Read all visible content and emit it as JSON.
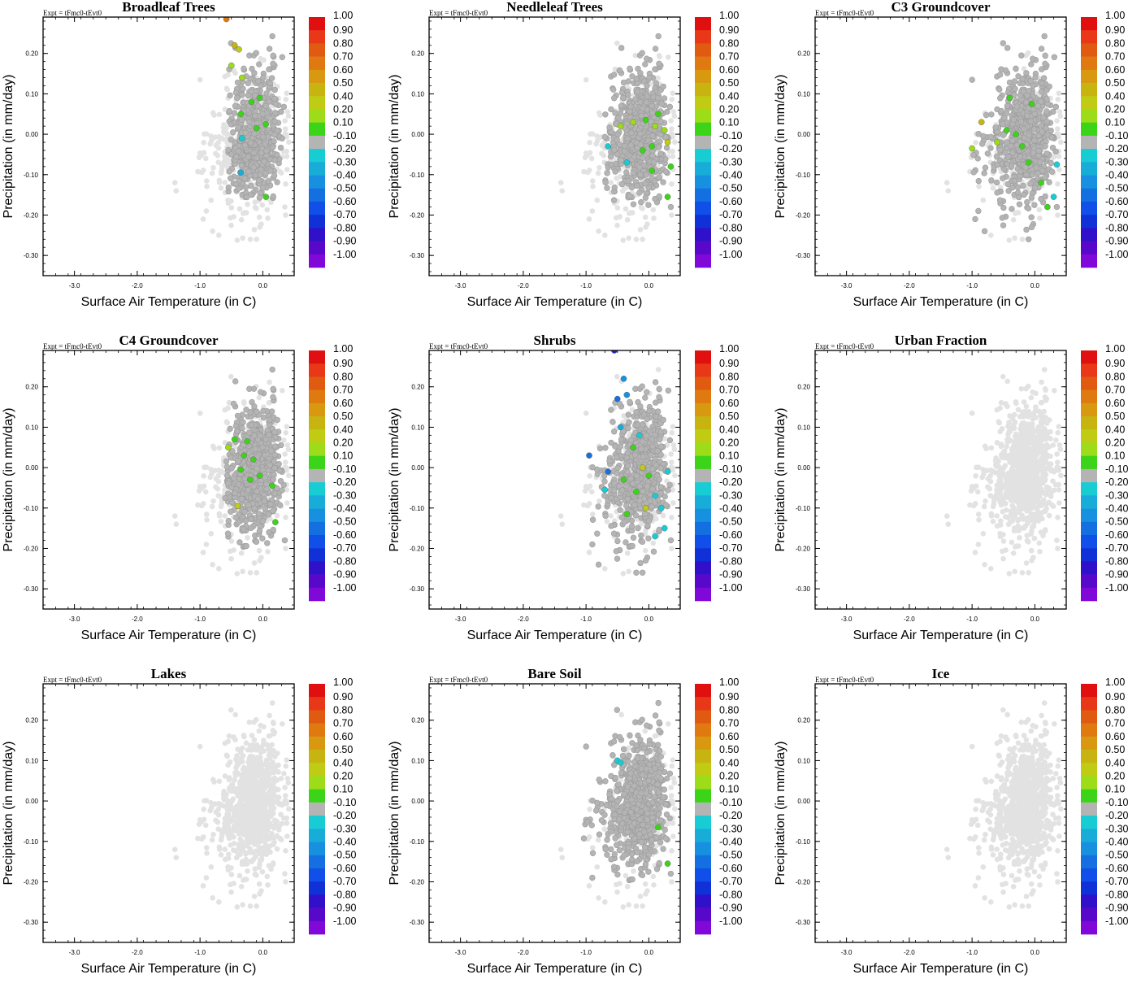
{
  "figure": {
    "expt_label": "Expt = tFmc0-tEvt0",
    "xlabel": "Surface Air Temperature (in C)",
    "ylabel": "Precipitation (in mm/day)"
  },
  "chart_data": {
    "type": "scatter",
    "xlim": [
      -3.5,
      0.5
    ],
    "ylim": [
      -0.35,
      0.29
    ],
    "x_ticks": [
      -3.0,
      -2.0,
      -1.0,
      0.0
    ],
    "x_tick_labels": [
      "-3.0",
      "-2.0",
      "-1.0",
      "0.0"
    ],
    "y_ticks": [
      0.2,
      0.1,
      0.0,
      -0.1,
      -0.2,
      -0.3
    ],
    "y_tick_labels": [
      "0.20",
      "0.10",
      "0.00",
      "-0.10",
      "-0.20",
      "-0.30"
    ],
    "colorbar": {
      "labels": [
        "1.00",
        "0.90",
        "0.80",
        "0.70",
        "0.60",
        "0.50",
        "0.40",
        "0.20",
        "0.10",
        "-0.10",
        "-0.20",
        "-0.30",
        "-0.40",
        "-0.50",
        "-0.60",
        "-0.70",
        "-0.80",
        "-0.90",
        "-1.00"
      ],
      "colors": [
        "#e01010",
        "#e83818",
        "#e05a12",
        "#e07a10",
        "#d89810",
        "#c8b410",
        "#c0cc14",
        "#9cdc18",
        "#3cd418",
        "#b4b4b4",
        "#18ccd4",
        "#18acd8",
        "#1890e0",
        "#1470e0",
        "#1050e8",
        "#1030d8",
        "#3010c8",
        "#5808c8",
        "#8008d8"
      ]
    },
    "panels": [
      {
        "title": "Broadleaf Trees",
        "gray_bbox": [
          -0.55,
          -0.16,
          0.35,
          0.26
        ],
        "colored_points": [
          {
            "x": -0.58,
            "y": 0.285,
            "c": 0.7
          },
          {
            "x": -0.45,
            "y": 0.22,
            "c": 0.5
          },
          {
            "x": -0.38,
            "y": 0.21,
            "c": 0.4
          },
          {
            "x": -0.5,
            "y": 0.17,
            "c": 0.2
          },
          {
            "x": -0.33,
            "y": 0.14,
            "c": 0.2
          },
          {
            "x": -0.05,
            "y": 0.09,
            "c": 0.1
          },
          {
            "x": -0.18,
            "y": 0.08,
            "c": 0.1
          },
          {
            "x": -0.35,
            "y": 0.05,
            "c": 0.1
          },
          {
            "x": -0.1,
            "y": 0.015,
            "c": 0.1
          },
          {
            "x": 0.05,
            "y": 0.025,
            "c": 0.1
          },
          {
            "x": -0.33,
            "y": -0.01,
            "c": -0.2
          },
          {
            "x": -0.35,
            "y": -0.095,
            "c": -0.3
          },
          {
            "x": 0.05,
            "y": -0.155,
            "c": 0.1
          }
        ]
      },
      {
        "title": "Needleleaf Trees",
        "gray_bbox": [
          -0.7,
          -0.18,
          0.35,
          0.26
        ],
        "colored_points": [
          {
            "x": -0.65,
            "y": -0.03,
            "c": -0.2
          },
          {
            "x": -0.45,
            "y": 0.02,
            "c": 0.2
          },
          {
            "x": -0.25,
            "y": 0.03,
            "c": 0.2
          },
          {
            "x": -0.05,
            "y": 0.035,
            "c": 0.1
          },
          {
            "x": 0.1,
            "y": 0.02,
            "c": 0.2
          },
          {
            "x": 0.25,
            "y": 0.01,
            "c": 0.2
          },
          {
            "x": 0.3,
            "y": -0.02,
            "c": 0.4
          },
          {
            "x": 0.05,
            "y": -0.03,
            "c": 0.1
          },
          {
            "x": -0.1,
            "y": -0.04,
            "c": 0.1
          },
          {
            "x": -0.35,
            "y": -0.07,
            "c": -0.2
          },
          {
            "x": 0.05,
            "y": -0.09,
            "c": 0.1
          },
          {
            "x": 0.35,
            "y": -0.08,
            "c": 0.1
          },
          {
            "x": 0.3,
            "y": -0.155,
            "c": 0.1
          },
          {
            "x": 0.15,
            "y": 0.05,
            "c": 0.1
          }
        ]
      },
      {
        "title": "C3 Groundcover",
        "gray_bbox": [
          -1.0,
          -0.26,
          0.35,
          0.25
        ],
        "colored_points": [
          {
            "x": -0.85,
            "y": 0.03,
            "c": 0.5
          },
          {
            "x": -1.0,
            "y": -0.035,
            "c": 0.2
          },
          {
            "x": -0.6,
            "y": -0.02,
            "c": 0.2
          },
          {
            "x": -0.45,
            "y": 0.01,
            "c": 0.1
          },
          {
            "x": -0.3,
            "y": 0.0,
            "c": 0.1
          },
          {
            "x": -0.4,
            "y": 0.09,
            "c": 0.1
          },
          {
            "x": -0.05,
            "y": 0.075,
            "c": 0.1
          },
          {
            "x": -0.2,
            "y": -0.03,
            "c": 0.1
          },
          {
            "x": -0.1,
            "y": -0.07,
            "c": 0.1
          },
          {
            "x": 0.1,
            "y": -0.12,
            "c": 0.1
          },
          {
            "x": 0.2,
            "y": -0.18,
            "c": 0.1
          },
          {
            "x": 0.3,
            "y": -0.155,
            "c": -0.2
          },
          {
            "x": 0.35,
            "y": -0.075,
            "c": -0.2
          }
        ]
      },
      {
        "title": "C4 Groundcover",
        "gray_bbox": [
          -0.6,
          -0.2,
          0.35,
          0.27
        ],
        "colored_points": [
          {
            "x": -0.45,
            "y": 0.07,
            "c": 0.1
          },
          {
            "x": -0.25,
            "y": 0.065,
            "c": 0.1
          },
          {
            "x": -0.55,
            "y": 0.05,
            "c": 0.2
          },
          {
            "x": -0.3,
            "y": 0.03,
            "c": 0.1
          },
          {
            "x": -0.15,
            "y": 0.02,
            "c": 0.1
          },
          {
            "x": -0.35,
            "y": -0.005,
            "c": 0.1
          },
          {
            "x": -0.05,
            "y": -0.02,
            "c": 0.1
          },
          {
            "x": -0.2,
            "y": -0.03,
            "c": 0.1
          },
          {
            "x": 0.15,
            "y": -0.045,
            "c": 0.1
          },
          {
            "x": -0.4,
            "y": -0.095,
            "c": 0.4
          },
          {
            "x": 0.2,
            "y": -0.135,
            "c": 0.1
          }
        ]
      },
      {
        "title": "Shrubs",
        "gray_bbox": [
          -0.9,
          -0.26,
          0.35,
          0.25
        ],
        "colored_points": [
          {
            "x": -0.55,
            "y": 0.29,
            "c": -0.7
          },
          {
            "x": -0.4,
            "y": 0.22,
            "c": -0.4
          },
          {
            "x": -0.35,
            "y": 0.18,
            "c": -0.4
          },
          {
            "x": -0.5,
            "y": 0.17,
            "c": -0.5
          },
          {
            "x": -0.45,
            "y": 0.1,
            "c": -0.3
          },
          {
            "x": -0.15,
            "y": 0.08,
            "c": -0.2
          },
          {
            "x": -0.25,
            "y": 0.05,
            "c": 0.1
          },
          {
            "x": -0.95,
            "y": 0.03,
            "c": -0.5
          },
          {
            "x": -0.65,
            "y": -0.01,
            "c": -0.5
          },
          {
            "x": -0.1,
            "y": 0.0,
            "c": 0.4
          },
          {
            "x": 0.0,
            "y": -0.02,
            "c": 0.1
          },
          {
            "x": -0.4,
            "y": -0.03,
            "c": 0.1
          },
          {
            "x": 0.3,
            "y": -0.01,
            "c": -0.2
          },
          {
            "x": -0.7,
            "y": -0.055,
            "c": -0.2
          },
          {
            "x": -0.2,
            "y": -0.06,
            "c": 0.1
          },
          {
            "x": 0.1,
            "y": -0.07,
            "c": -0.2
          },
          {
            "x": -0.05,
            "y": -0.1,
            "c": 0.4
          },
          {
            "x": -0.35,
            "y": -0.115,
            "c": 0.1
          },
          {
            "x": 0.2,
            "y": -0.1,
            "c": -0.2
          },
          {
            "x": 0.25,
            "y": -0.15,
            "c": -0.2
          },
          {
            "x": 0.1,
            "y": -0.17,
            "c": -0.2
          }
        ]
      },
      {
        "title": "Urban Fraction",
        "gray_bbox": null,
        "colored_points": []
      },
      {
        "title": "Lakes",
        "gray_bbox": null,
        "colored_points": []
      },
      {
        "title": "Bare Soil",
        "gray_bbox": [
          -1.1,
          -0.2,
          0.35,
          0.28
        ],
        "colored_points": [
          {
            "x": -0.5,
            "y": 0.1,
            "c": -0.2
          },
          {
            "x": -0.45,
            "y": 0.095,
            "c": -0.2
          },
          {
            "x": 0.15,
            "y": -0.065,
            "c": 0.1
          },
          {
            "x": 0.3,
            "y": -0.155,
            "c": 0.1
          }
        ]
      },
      {
        "title": "Ice",
        "gray_bbox": null,
        "colored_points": []
      }
    ]
  }
}
